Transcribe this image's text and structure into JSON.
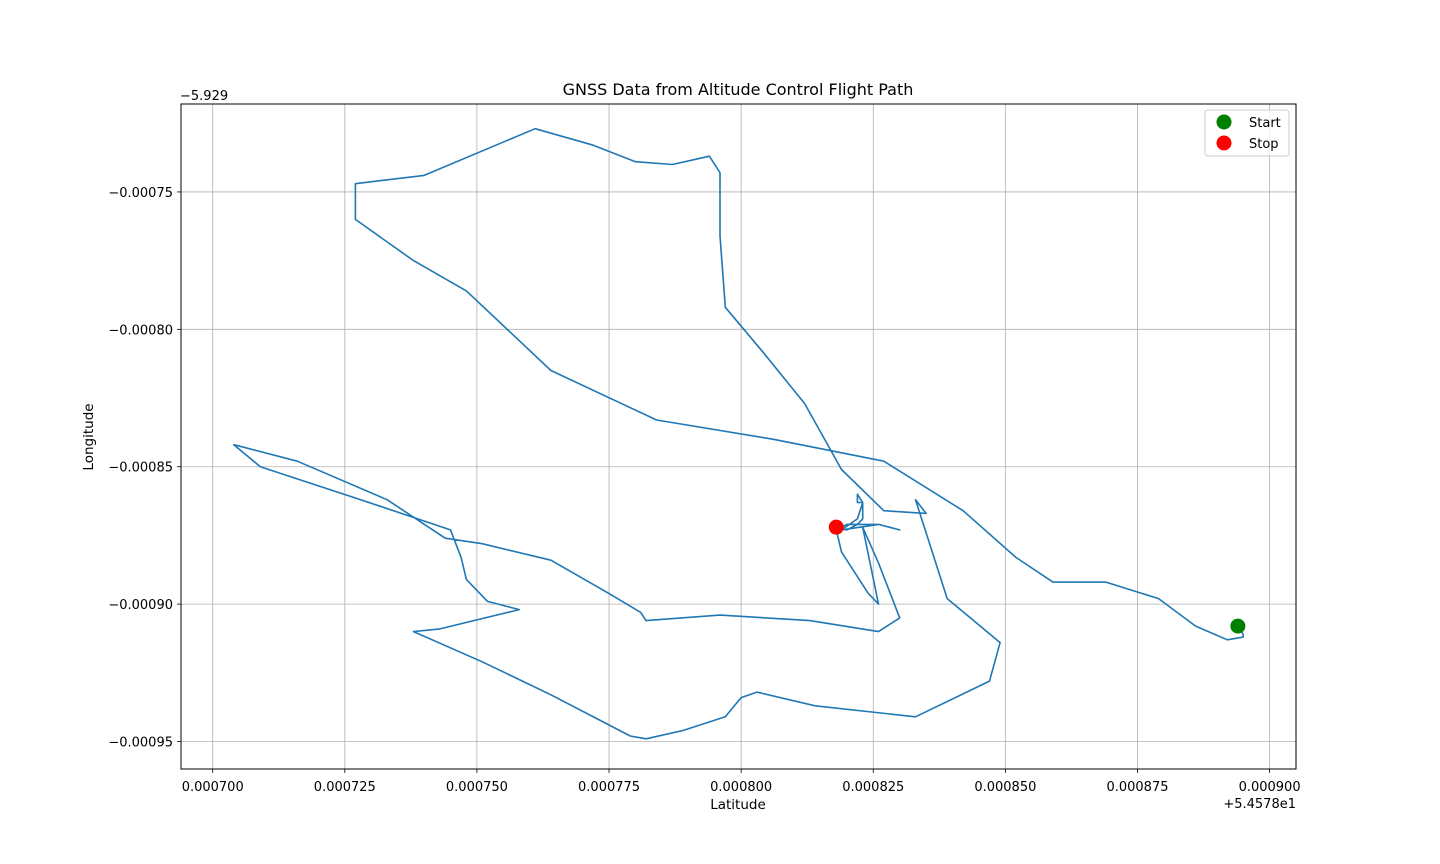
{
  "chart_data": {
    "type": "line",
    "title": "GNSS Data from Altitude Control Flight Path",
    "xlabel": "Latitude",
    "ylabel": "Longitude",
    "x_offset_label": "+5.4578e1",
    "y_offset_label": "−5.929",
    "x_ticks": [
      0.0007,
      0.000725,
      0.00075,
      0.000775,
      0.0008,
      0.000825,
      0.00085,
      0.000875,
      0.0009
    ],
    "x_tick_labels": [
      "0.000700",
      "0.000725",
      "0.000750",
      "0.000775",
      "0.000800",
      "0.000825",
      "0.000850",
      "0.000875",
      "0.000900"
    ],
    "y_ticks": [
      -0.00075,
      -0.0008,
      -0.00085,
      -0.0009,
      -0.00095
    ],
    "y_tick_labels": [
      "−0.00075",
      "−0.00080",
      "−0.00085",
      "−0.00090",
      "−0.00095"
    ],
    "xlim": [
      0.000694,
      0.000905
    ],
    "ylim": [
      -0.00096,
      -0.000718
    ],
    "grid": true,
    "legend": {
      "placement": "top-right",
      "entries": [
        {
          "label": "Start",
          "color": "#008000"
        },
        {
          "label": "Stop",
          "color": "#ff0000"
        }
      ]
    },
    "series": [
      {
        "color": "#1f77b4",
        "x": [
          0.000894,
          0.000895,
          0.000895,
          0.000892,
          0.000886,
          0.000879,
          0.000869,
          0.000859,
          0.000852,
          0.000842,
          0.000827,
          0.000806,
          0.000784,
          0.000764,
          0.000748,
          0.000738,
          0.000727,
          0.000727,
          0.00074,
          0.000761,
          0.000772,
          0.00078,
          0.000787,
          0.000794,
          0.000796,
          0.000796,
          0.000797,
          0.000804,
          0.000812,
          0.000819,
          0.000827,
          0.000835,
          0.000833,
          0.000839,
          0.000849,
          0.000847,
          0.000833,
          0.000814,
          0.000803,
          0.0008,
          0.000797,
          0.000789,
          0.000782,
          0.000779,
          0.000773,
          0.000764,
          0.000751,
          0.000738,
          0.000743,
          0.000758,
          0.000752,
          0.000748,
          0.000747,
          0.000745,
          0.000728,
          0.000709,
          0.000704,
          0.000716,
          0.000733,
          0.000744,
          0.000751,
          0.000764,
          0.000774,
          0.000781,
          0.000782,
          0.000796,
          0.000813,
          0.000826,
          0.00083,
          0.000826,
          0.000823,
          0.000826,
          0.000824,
          0.000819,
          0.000818,
          0.00082,
          0.000822,
          0.000823,
          0.000823,
          0.000822,
          0.000822,
          0.000823,
          0.000822,
          0.000819,
          0.000826,
          0.00083,
          0.000826,
          0.000822,
          0.00082,
          0.000818
        ],
        "y": [
          -0.000908,
          -0.000911,
          -0.000912,
          -0.000913,
          -0.000908,
          -0.000898,
          -0.000892,
          -0.000892,
          -0.000883,
          -0.000866,
          -0.000848,
          -0.00084,
          -0.000833,
          -0.000815,
          -0.000786,
          -0.000775,
          -0.00076,
          -0.000747,
          -0.000744,
          -0.000727,
          -0.000733,
          -0.000739,
          -0.00074,
          -0.000737,
          -0.000743,
          -0.000766,
          -0.000792,
          -0.000808,
          -0.000827,
          -0.000851,
          -0.000866,
          -0.000867,
          -0.000862,
          -0.000898,
          -0.000914,
          -0.000928,
          -0.000941,
          -0.000937,
          -0.000932,
          -0.000934,
          -0.000941,
          -0.000946,
          -0.000949,
          -0.000948,
          -0.000942,
          -0.000933,
          -0.000921,
          -0.00091,
          -0.000909,
          -0.000902,
          -0.000899,
          -0.000891,
          -0.000883,
          -0.000873,
          -0.000862,
          -0.00085,
          -0.000842,
          -0.000848,
          -0.000862,
          -0.000876,
          -0.000878,
          -0.000884,
          -0.000895,
          -0.000903,
          -0.000906,
          -0.000904,
          -0.000906,
          -0.00091,
          -0.000905,
          -0.000885,
          -0.000872,
          -0.0009,
          -0.000896,
          -0.000881,
          -0.000873,
          -0.000871,
          -0.000871,
          -0.000869,
          -0.000863,
          -0.000863,
          -0.00086,
          -0.000863,
          -0.000869,
          -0.000873,
          -0.000871,
          -0.000873,
          -0.000871,
          -0.000871,
          -0.000873,
          -0.000872
        ]
      }
    ],
    "markers": [
      {
        "label": "Start",
        "x": 0.000894,
        "y": -0.000908,
        "color": "#008000"
      },
      {
        "label": "Stop",
        "x": 0.000818,
        "y": -0.000872,
        "color": "#ff0000"
      }
    ]
  }
}
